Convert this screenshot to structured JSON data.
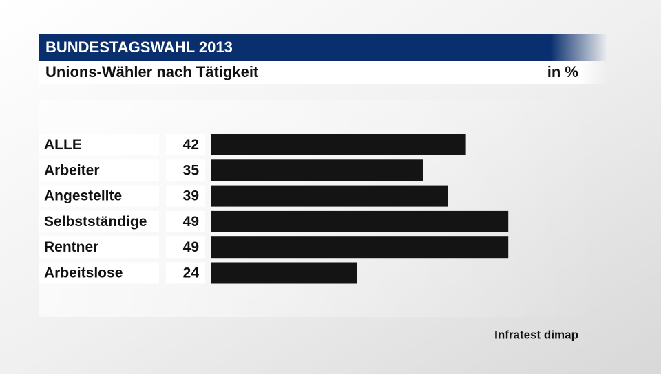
{
  "chart_data": {
    "type": "bar",
    "header": "BUNDESTAGSWAHL 2013",
    "title": "Unions-Wähler nach Tätigkeit",
    "unit": "in %",
    "categories": [
      "ALLE",
      "Arbeiter",
      "Angestellte",
      "Selbstständige",
      "Rentner",
      "Arbeitslose"
    ],
    "values": [
      42,
      35,
      39,
      49,
      49,
      24
    ],
    "color": "#141414",
    "source": "Infratest dimap"
  }
}
